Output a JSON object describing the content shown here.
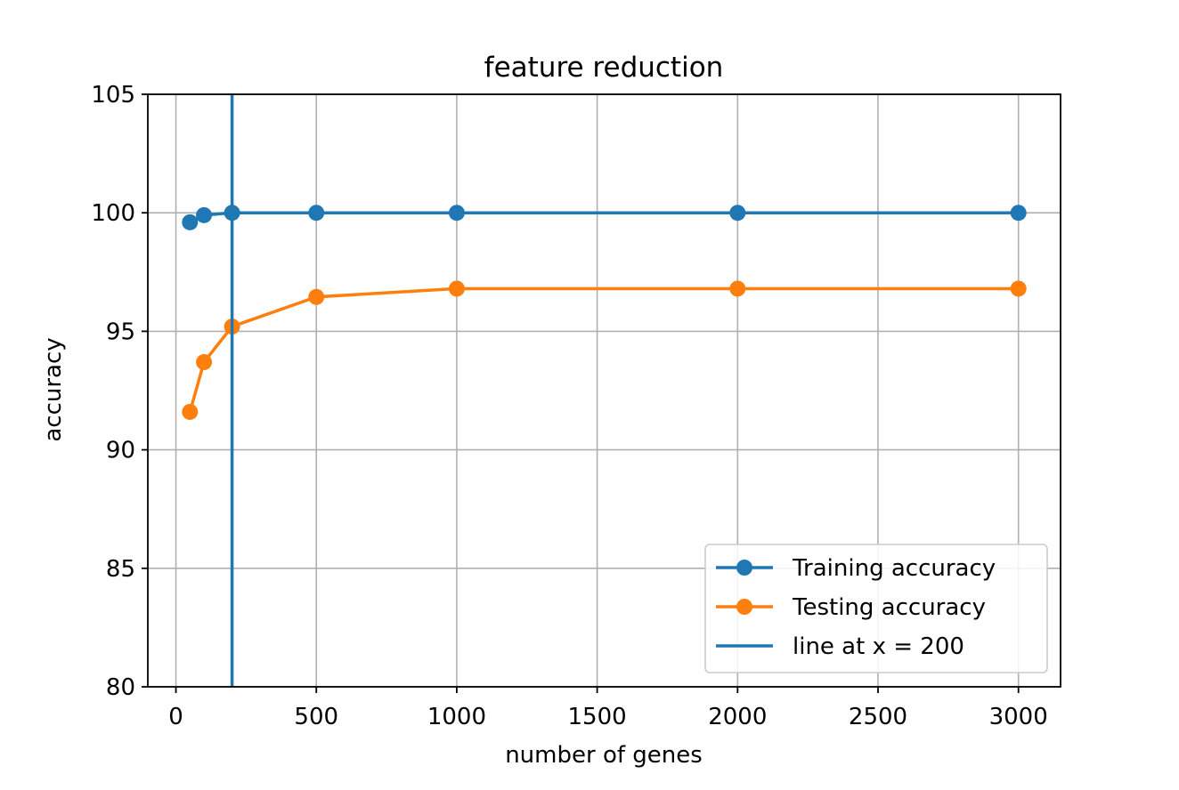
{
  "chart_data": {
    "type": "line",
    "title": "feature reduction",
    "xlabel": "number of genes",
    "ylabel": "accuracy",
    "xlim": [
      -100,
      3150
    ],
    "ylim": [
      80,
      105
    ],
    "xticks": [
      0,
      500,
      1000,
      1500,
      2000,
      2500,
      3000
    ],
    "yticks": [
      80,
      85,
      90,
      95,
      100,
      105
    ],
    "grid": true,
    "legend_position": "lower-right",
    "series": [
      {
        "name": "Training accuracy",
        "color": "#1f77b4",
        "marker": "circle",
        "x": [
          50,
          100,
          200,
          500,
          1000,
          2000,
          3000
        ],
        "y": [
          99.6,
          99.9,
          100,
          100,
          100,
          100,
          100
        ]
      },
      {
        "name": "Testing accuracy",
        "color": "#ff7f0e",
        "marker": "circle",
        "x": [
          50,
          100,
          200,
          500,
          1000,
          2000,
          3000
        ],
        "y": [
          91.6,
          93.7,
          95.2,
          96.45,
          96.8,
          96.8,
          96.8
        ]
      }
    ],
    "vlines": [
      {
        "name": "line at x = 200",
        "x": 200,
        "color": "#1f77b4"
      }
    ]
  }
}
